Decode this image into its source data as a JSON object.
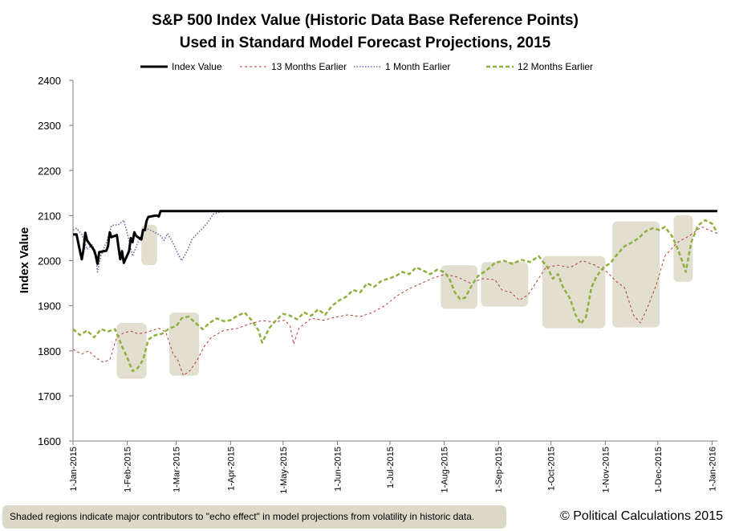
{
  "chart_data": {
    "type": "line",
    "title": [
      "S&P 500 Index Value (Historic Data Base Reference Points)",
      "Used in Standard Model Forecast Projections, 2015"
    ],
    "xlabel": "",
    "ylabel": "Index Value",
    "ylim": [
      1600,
      2400
    ],
    "y_ticks": [
      1600,
      1700,
      1800,
      1900,
      2000,
      2100,
      2200,
      2300,
      2400
    ],
    "x_range": [
      "2015-01-01",
      "2016-01-04"
    ],
    "x_ticks": [
      {
        "date": "2015-01-01",
        "label": "1-Jan-2015"
      },
      {
        "date": "2015-02-01",
        "label": "1-Feb-2015"
      },
      {
        "date": "2015-03-01",
        "label": "1-Mar-2015"
      },
      {
        "date": "2015-04-01",
        "label": "1-Apr-2015"
      },
      {
        "date": "2015-05-01",
        "label": "1-May-2015"
      },
      {
        "date": "2015-06-01",
        "label": "1-Jun-2015"
      },
      {
        "date": "2015-07-01",
        "label": "1-Jul-2015"
      },
      {
        "date": "2015-08-01",
        "label": "1-Aug-2015"
      },
      {
        "date": "2015-09-01",
        "label": "1-Sep-2015"
      },
      {
        "date": "2015-10-01",
        "label": "1-Oct-2015"
      },
      {
        "date": "2015-11-01",
        "label": "1-Nov-2015"
      },
      {
        "date": "2015-12-01",
        "label": "1-Dec-2015"
      },
      {
        "date": "2016-01-01",
        "label": "1-Jan-2016"
      }
    ],
    "grid": false,
    "legend_position": "top",
    "shaded_regions": [
      {
        "x": [
          "2015-01-26",
          "2015-02-12"
        ],
        "y": [
          1738,
          1862
        ]
      },
      {
        "x": [
          "2015-02-09",
          "2015-02-18"
        ],
        "y": [
          1990,
          2080
        ]
      },
      {
        "x": [
          "2015-02-25",
          "2015-03-14"
        ],
        "y": [
          1745,
          1885
        ]
      },
      {
        "x": [
          "2015-07-30",
          "2015-08-20"
        ],
        "y": [
          1893,
          1990
        ]
      },
      {
        "x": [
          "2015-08-22",
          "2015-09-18"
        ],
        "y": [
          1898,
          1997
        ]
      },
      {
        "x": [
          "2015-09-26",
          "2015-11-01"
        ],
        "y": [
          1850,
          2010
        ]
      },
      {
        "x": [
          "2015-11-05",
          "2015-12-02"
        ],
        "y": [
          1852,
          2087
        ]
      },
      {
        "x": [
          "2015-12-10",
          "2015-12-21"
        ],
        "y": [
          1953,
          2101
        ]
      }
    ],
    "series": [
      {
        "name": "Index Value",
        "color": "#000000",
        "style": "solid-thick",
        "points": [
          [
            "2015-01-01",
            2058
          ],
          [
            "2015-01-02",
            2058
          ],
          [
            "2015-01-03",
            2058
          ],
          [
            "2015-01-05",
            2021
          ],
          [
            "2015-01-06",
            2003
          ],
          [
            "2015-01-07",
            2025
          ],
          [
            "2015-01-08",
            2062
          ],
          [
            "2015-01-09",
            2045
          ],
          [
            "2015-01-12",
            2029
          ],
          [
            "2015-01-13",
            2023
          ],
          [
            "2015-01-14",
            2011
          ],
          [
            "2015-01-15",
            1993
          ],
          [
            "2015-01-16",
            2019
          ],
          [
            "2015-01-20",
            2022
          ],
          [
            "2015-01-21",
            2032
          ],
          [
            "2015-01-22",
            2063
          ],
          [
            "2015-01-23",
            2052
          ],
          [
            "2015-01-26",
            2057
          ],
          [
            "2015-01-27",
            2030
          ],
          [
            "2015-01-28",
            2003
          ],
          [
            "2015-01-29",
            2021
          ],
          [
            "2015-01-30",
            1995
          ],
          [
            "2015-02-02",
            2021
          ],
          [
            "2015-02-03",
            2050
          ],
          [
            "2015-02-04",
            2041
          ],
          [
            "2015-02-05",
            2063
          ],
          [
            "2015-02-06",
            2055
          ],
          [
            "2015-02-09",
            2047
          ],
          [
            "2015-02-10",
            2068
          ],
          [
            "2015-02-11",
            2068
          ],
          [
            "2015-02-12",
            2088
          ],
          [
            "2015-02-13",
            2097
          ],
          [
            "2015-02-17",
            2100
          ],
          [
            "2015-02-18",
            2100
          ],
          [
            "2015-02-19",
            2098
          ],
          [
            "2015-02-20",
            2110
          ],
          [
            "2015-02-21",
            2110
          ],
          [
            "2015-12-31",
            2110
          ],
          [
            "2016-01-04",
            2110
          ]
        ]
      },
      {
        "name": "13 Months Earlier",
        "color": "#b23b3b",
        "style": "dashed",
        "points": [
          [
            "2015-01-01",
            1803
          ],
          [
            "2015-01-06",
            1793
          ],
          [
            "2015-01-10",
            1800
          ],
          [
            "2015-01-14",
            1785
          ],
          [
            "2015-01-18",
            1775
          ],
          [
            "2015-01-22",
            1780
          ],
          [
            "2015-01-26",
            1830
          ],
          [
            "2015-01-30",
            1840
          ],
          [
            "2015-02-03",
            1844
          ],
          [
            "2015-02-07",
            1838
          ],
          [
            "2015-02-11",
            1840
          ],
          [
            "2015-02-15",
            1845
          ],
          [
            "2015-02-19",
            1850
          ],
          [
            "2015-02-23",
            1842
          ],
          [
            "2015-02-27",
            1795
          ],
          [
            "2015-03-02",
            1778
          ],
          [
            "2015-03-05",
            1745
          ],
          [
            "2015-03-09",
            1757
          ],
          [
            "2015-03-13",
            1780
          ],
          [
            "2015-03-17",
            1810
          ],
          [
            "2015-03-21",
            1830
          ],
          [
            "2015-03-28",
            1845
          ],
          [
            "2015-04-05",
            1850
          ],
          [
            "2015-04-12",
            1860
          ],
          [
            "2015-04-19",
            1867
          ],
          [
            "2015-04-26",
            1864
          ],
          [
            "2015-05-02",
            1868
          ],
          [
            "2015-05-05",
            1855
          ],
          [
            "2015-05-07",
            1815
          ],
          [
            "2015-05-10",
            1850
          ],
          [
            "2015-05-17",
            1872
          ],
          [
            "2015-05-24",
            1868
          ],
          [
            "2015-05-31",
            1875
          ],
          [
            "2015-06-07",
            1880
          ],
          [
            "2015-06-14",
            1876
          ],
          [
            "2015-06-21",
            1885
          ],
          [
            "2015-06-28",
            1900
          ],
          [
            "2015-07-05",
            1922
          ],
          [
            "2015-07-12",
            1938
          ],
          [
            "2015-07-19",
            1950
          ],
          [
            "2015-07-26",
            1962
          ],
          [
            "2015-08-02",
            1970
          ],
          [
            "2015-08-09",
            1963
          ],
          [
            "2015-08-16",
            1950
          ],
          [
            "2015-08-23",
            1960
          ],
          [
            "2015-08-30",
            1958
          ],
          [
            "2015-09-03",
            1935
          ],
          [
            "2015-09-08",
            1930
          ],
          [
            "2015-09-13",
            1912
          ],
          [
            "2015-09-18",
            1925
          ],
          [
            "2015-09-23",
            1955
          ],
          [
            "2015-09-28",
            1985
          ],
          [
            "2015-10-05",
            1990
          ],
          [
            "2015-10-12",
            1985
          ],
          [
            "2015-10-19",
            2000
          ],
          [
            "2015-10-26",
            1990
          ],
          [
            "2015-11-02",
            1975
          ],
          [
            "2015-11-07",
            1955
          ],
          [
            "2015-11-12",
            1940
          ],
          [
            "2015-11-17",
            1880
          ],
          [
            "2015-11-21",
            1862
          ],
          [
            "2015-11-25",
            1895
          ],
          [
            "2015-11-30",
            1945
          ],
          [
            "2015-12-05",
            2010
          ],
          [
            "2015-12-12",
            2040
          ],
          [
            "2015-12-19",
            2055
          ],
          [
            "2015-12-26",
            2075
          ],
          [
            "2016-01-04",
            2060
          ]
        ]
      },
      {
        "name": "1 Month Earlier",
        "color": "#6a6aa8",
        "style": "dotted",
        "points": [
          [
            "2015-01-01",
            2068
          ],
          [
            "2015-01-03",
            2072
          ],
          [
            "2015-01-06",
            2058
          ],
          [
            "2015-01-09",
            2025
          ],
          [
            "2015-01-12",
            2035
          ],
          [
            "2015-01-14",
            2018
          ],
          [
            "2015-01-15",
            1975
          ],
          [
            "2015-01-17",
            2012
          ],
          [
            "2015-01-20",
            2040
          ],
          [
            "2015-01-23",
            2078
          ],
          [
            "2015-01-27",
            2080
          ],
          [
            "2015-01-30",
            2090
          ],
          [
            "2015-02-02",
            2045
          ],
          [
            "2015-02-04",
            2010
          ],
          [
            "2015-02-07",
            2040
          ],
          [
            "2015-02-10",
            2063
          ],
          [
            "2015-02-13",
            2070
          ],
          [
            "2015-02-17",
            2062
          ],
          [
            "2015-02-20",
            2055
          ],
          [
            "2015-02-22",
            2045
          ],
          [
            "2015-02-24",
            2060
          ],
          [
            "2015-02-27",
            2040
          ],
          [
            "2015-03-02",
            2015
          ],
          [
            "2015-03-04",
            2000
          ],
          [
            "2015-03-07",
            2020
          ],
          [
            "2015-03-10",
            2048
          ],
          [
            "2015-03-13",
            2060
          ],
          [
            "2015-03-16",
            2072
          ],
          [
            "2015-03-19",
            2085
          ],
          [
            "2015-03-22",
            2103
          ],
          [
            "2015-03-26",
            2108
          ],
          [
            "2015-03-31",
            2110
          ],
          [
            "2015-12-31",
            2110
          ],
          [
            "2016-01-04",
            2110
          ]
        ]
      },
      {
        "name": "12 Months Earlier",
        "color": "#8fb03c",
        "style": "dashed-thick",
        "points": [
          [
            "2015-01-01",
            1848
          ],
          [
            "2015-01-05",
            1835
          ],
          [
            "2015-01-09",
            1845
          ],
          [
            "2015-01-13",
            1830
          ],
          [
            "2015-01-17",
            1848
          ],
          [
            "2015-01-21",
            1843
          ],
          [
            "2015-01-25",
            1848
          ],
          [
            "2015-01-29",
            1810
          ],
          [
            "2015-02-01",
            1785
          ],
          [
            "2015-02-04",
            1755
          ],
          [
            "2015-02-07",
            1762
          ],
          [
            "2015-02-10",
            1780
          ],
          [
            "2015-02-13",
            1825
          ],
          [
            "2015-02-17",
            1835
          ],
          [
            "2015-02-21",
            1838
          ],
          [
            "2015-02-25",
            1850
          ],
          [
            "2015-03-01",
            1855
          ],
          [
            "2015-03-04",
            1872
          ],
          [
            "2015-03-08",
            1876
          ],
          [
            "2015-03-12",
            1862
          ],
          [
            "2015-03-16",
            1848
          ],
          [
            "2015-03-20",
            1862
          ],
          [
            "2015-03-24",
            1872
          ],
          [
            "2015-03-28",
            1866
          ],
          [
            "2015-04-01",
            1868
          ],
          [
            "2015-04-05",
            1878
          ],
          [
            "2015-04-09",
            1885
          ],
          [
            "2015-04-13",
            1868
          ],
          [
            "2015-04-17",
            1845
          ],
          [
            "2015-04-19",
            1818
          ],
          [
            "2015-04-23",
            1850
          ],
          [
            "2015-04-27",
            1868
          ],
          [
            "2015-05-01",
            1882
          ],
          [
            "2015-05-05",
            1878
          ],
          [
            "2015-05-09",
            1870
          ],
          [
            "2015-05-13",
            1885
          ],
          [
            "2015-05-17",
            1878
          ],
          [
            "2015-05-21",
            1892
          ],
          [
            "2015-05-25",
            1880
          ],
          [
            "2015-05-29",
            1900
          ],
          [
            "2015-06-02",
            1912
          ],
          [
            "2015-06-06",
            1920
          ],
          [
            "2015-06-10",
            1935
          ],
          [
            "2015-06-14",
            1930
          ],
          [
            "2015-06-18",
            1950
          ],
          [
            "2015-06-22",
            1942
          ],
          [
            "2015-06-26",
            1955
          ],
          [
            "2015-06-30",
            1960
          ],
          [
            "2015-07-04",
            1965
          ],
          [
            "2015-07-08",
            1975
          ],
          [
            "2015-07-12",
            1970
          ],
          [
            "2015-07-16",
            1985
          ],
          [
            "2015-07-20",
            1978
          ],
          [
            "2015-07-24",
            1970
          ],
          [
            "2015-07-28",
            1980
          ],
          [
            "2015-08-01",
            1975
          ],
          [
            "2015-08-04",
            1960
          ],
          [
            "2015-08-07",
            1930
          ],
          [
            "2015-08-10",
            1915
          ],
          [
            "2015-08-13",
            1918
          ],
          [
            "2015-08-16",
            1940
          ],
          [
            "2015-08-20",
            1965
          ],
          [
            "2015-08-25",
            1978
          ],
          [
            "2015-08-30",
            1995
          ],
          [
            "2015-09-04",
            2000
          ],
          [
            "2015-09-09",
            1993
          ],
          [
            "2015-09-14",
            2002
          ],
          [
            "2015-09-19",
            1997
          ],
          [
            "2015-09-24",
            2010
          ],
          [
            "2015-09-29",
            1985
          ],
          [
            "2015-10-02",
            1960
          ],
          [
            "2015-10-05",
            1970
          ],
          [
            "2015-10-08",
            1940
          ],
          [
            "2015-10-12",
            1915
          ],
          [
            "2015-10-15",
            1880
          ],
          [
            "2015-10-18",
            1860
          ],
          [
            "2015-10-21",
            1875
          ],
          [
            "2015-10-24",
            1940
          ],
          [
            "2015-10-27",
            1965
          ],
          [
            "2015-10-31",
            1985
          ],
          [
            "2015-11-04",
            1995
          ],
          [
            "2015-11-08",
            2015
          ],
          [
            "2015-11-12",
            2032
          ],
          [
            "2015-11-16",
            2040
          ],
          [
            "2015-11-20",
            2050
          ],
          [
            "2015-11-24",
            2065
          ],
          [
            "2015-11-28",
            2072
          ],
          [
            "2015-12-02",
            2068
          ],
          [
            "2015-12-05",
            2075
          ],
          [
            "2015-12-09",
            2055
          ],
          [
            "2015-12-12",
            2030
          ],
          [
            "2015-12-15",
            1998
          ],
          [
            "2015-12-17",
            1975
          ],
          [
            "2015-12-20",
            2040
          ],
          [
            "2015-12-24",
            2078
          ],
          [
            "2015-12-28",
            2090
          ],
          [
            "2016-01-01",
            2082
          ],
          [
            "2016-01-04",
            2062
          ]
        ]
      }
    ]
  },
  "footnote": "Shaded regions indicate major contributors to \"echo effect\"   in model projections from volatility in historic data.",
  "credit": "© Political Calculations 2015"
}
